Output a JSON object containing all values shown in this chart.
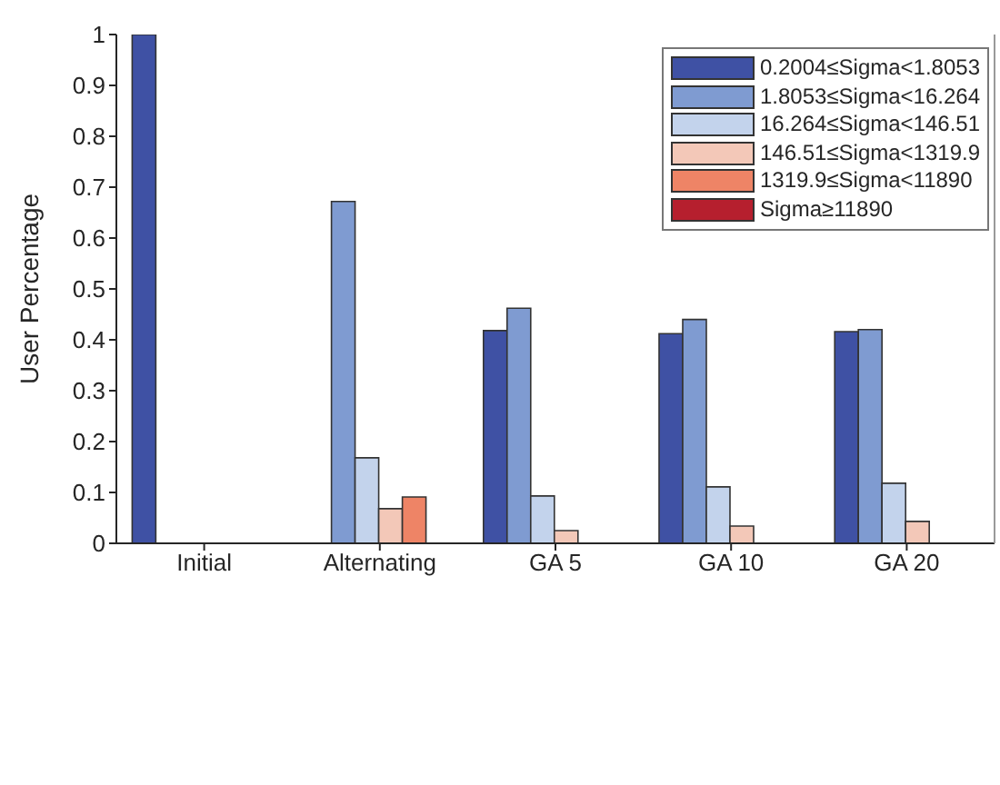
{
  "chart_data": {
    "type": "bar",
    "ylabel": "User Percentage",
    "categories": [
      "Initial",
      "Alternating",
      "GA 5",
      "GA 10",
      "GA 20"
    ],
    "series": [
      {
        "name": "0.2004≤Sigma<1.8053",
        "color": "#3f51a4",
        "values": [
          1,
          0,
          0.418,
          0.412,
          0.416
        ]
      },
      {
        "name": "1.8053≤Sigma<16.264",
        "color": "#7f9bd1",
        "values": [
          0,
          0.672,
          0.462,
          0.44,
          0.42
        ]
      },
      {
        "name": "16.264≤Sigma<146.51",
        "color": "#c3d3ec",
        "values": [
          0,
          0.168,
          0.093,
          0.111,
          0.118
        ]
      },
      {
        "name": "146.51≤Sigma<1319.9",
        "color": "#f3c8b8",
        "values": [
          0,
          0.068,
          0.025,
          0.034,
          0.043
        ]
      },
      {
        "name": "1319.9≤Sigma<11890",
        "color": "#ee8466",
        "values": [
          0,
          0.091,
          0,
          0,
          0
        ]
      },
      {
        "name": "Sigma≥11890",
        "color": "#b61f2e",
        "values": [
          0,
          0,
          0,
          0,
          0
        ]
      }
    ],
    "ylim": [
      0,
      1
    ],
    "yticks": [
      0,
      0.1,
      0.2,
      0.3,
      0.4,
      0.5,
      0.6,
      0.7,
      0.8,
      0.9,
      1
    ],
    "grid": false,
    "legend": "top right"
  }
}
